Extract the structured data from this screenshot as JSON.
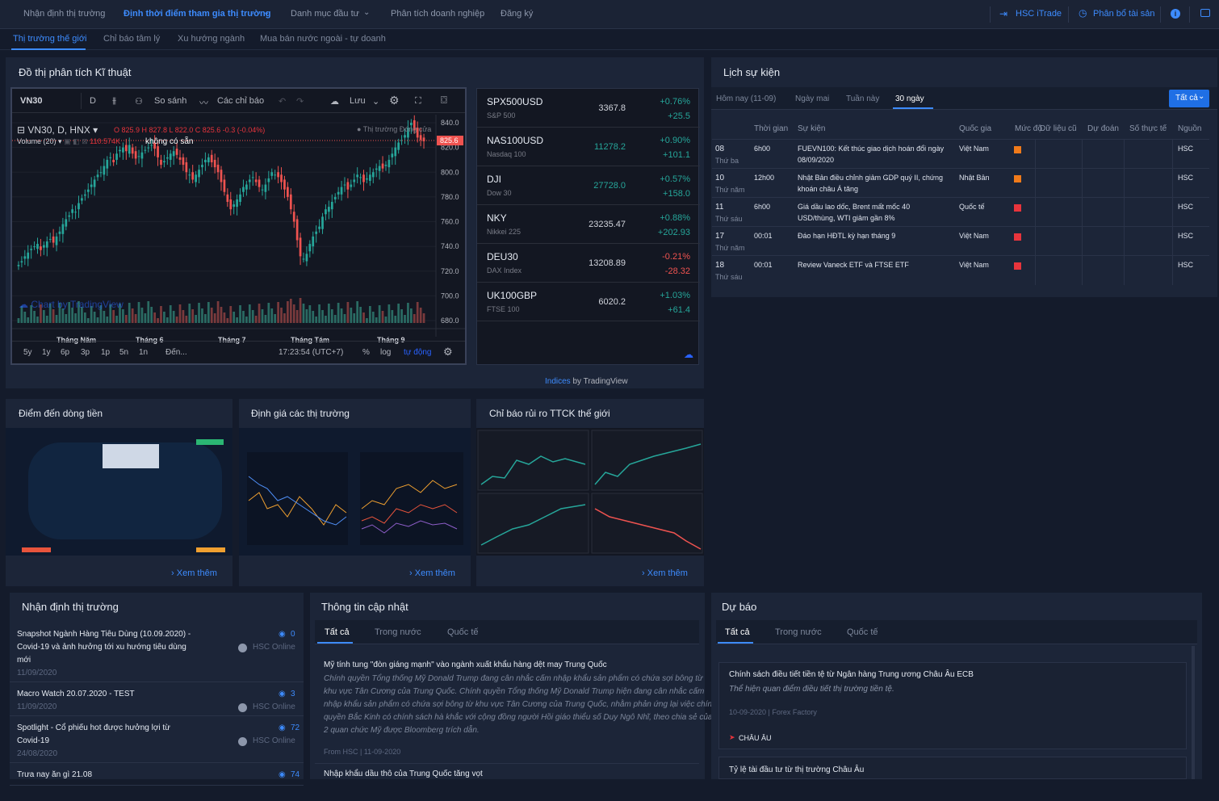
{
  "nav": {
    "items": [
      "Nhận định thị trường",
      "Định thời điểm tham gia thị trường",
      "Danh mục đầu tư",
      "Phân tích doanh nghiệp",
      "Đăng ký"
    ],
    "right": [
      "HSC iTrade",
      "Phân bổ tài sản"
    ]
  },
  "subnav": [
    "Thị trường thế giới",
    "Chỉ báo tâm lý",
    "Xu hướng ngành",
    "Mua bán nước ngoài - tự doanh"
  ],
  "tech": {
    "title": "Đồ thị phân tích Kĩ thuật",
    "symbol": "VN30",
    "interval": "D",
    "compare": "So sánh",
    "indicators": "Các chỉ báo",
    "save": "Lưu",
    "legend_symbol": "VN30, D, HNX",
    "ohlc": "O 825.9 H 827.8 L 822.0 C 825.6 -0.3 (-0.04%)",
    "volume_label": "Volume (20)",
    "volume_value": "110.574K",
    "volume_na": "không có sẵn",
    "market_status": "Thị trường Đóng cửa",
    "watermark": "Chart by TradingView",
    "ticks": [
      "840.0",
      "820.0",
      "800.0",
      "780.0",
      "760.0",
      "740.0",
      "720.0",
      "700.0",
      "680.0"
    ],
    "last_price": "825.6",
    "months": [
      "Tháng Năm",
      "Tháng 6",
      "Tháng 7",
      "Tháng Tám",
      "Tháng 9"
    ],
    "ranges": [
      "5y",
      "1y",
      "6p",
      "3p",
      "1p",
      "5n",
      "1n",
      "Đến..."
    ],
    "time": "17:23:54 (UTC+7)",
    "pct": "%",
    "log": "log",
    "auto": "tự động",
    "attribution_link": "Indices",
    "attribution_text": "by TradingView"
  },
  "indices": [
    {
      "sym": "SPX500USD",
      "name": "S&P 500",
      "price": "3367.8",
      "pct": "+0.76%",
      "chg": "+25.5",
      "up": true
    },
    {
      "sym": "NAS100USD",
      "name": "Nasdaq 100",
      "price": "11278.2",
      "pct": "+0.90%",
      "chg": "+101.1",
      "up": true
    },
    {
      "sym": "DJI",
      "name": "Dow 30",
      "price": "27728.0",
      "pct": "+0.57%",
      "chg": "+158.0",
      "up": true
    },
    {
      "sym": "NKY",
      "name": "Nikkei 225",
      "price": "23235.47",
      "pct": "+0.88%",
      "chg": "+202.93",
      "up": true
    },
    {
      "sym": "DEU30",
      "name": "DAX Index",
      "price": "13208.89",
      "pct": "-0.21%",
      "chg": "-28.32",
      "up": false
    },
    {
      "sym": "UK100GBP",
      "name": "FTSE 100",
      "price": "6020.2",
      "pct": "+1.03%",
      "chg": "+61.4",
      "up": true
    }
  ],
  "events": {
    "title": "Lịch sự kiện",
    "tabs": [
      "Hôm nay (11-09)",
      "Ngày mai",
      "Tuần này",
      "30 ngày"
    ],
    "filter": "Tất cả",
    "headers": [
      "Thời gian",
      "Sự kiện",
      "Quốc gia",
      "Mức độ",
      "Dữ liệu cũ",
      "Dự đoán",
      "Số thực tế",
      "Nguồn"
    ],
    "rows": [
      {
        "day": "08",
        "wd": "Thứ ba",
        "time": "6h00",
        "ev1": "FUEVN100: Kết thúc giao dịch hoán đổi ngày",
        "ev2": "08/09/2020",
        "country": "Việt Nam",
        "level": "#f07a1a",
        "src": "HSC"
      },
      {
        "day": "10",
        "wd": "Thứ năm",
        "time": "12h00",
        "ev1": "Nhật Bản điều chỉnh giảm GDP quý II, chứng",
        "ev2": "khoán châu Á tăng",
        "country": "Nhật Bản",
        "level": "#f07a1a",
        "src": "HSC"
      },
      {
        "day": "11",
        "wd": "Thứ sáu",
        "time": "6h00",
        "ev1": "Giá dầu lao dốc, Brent mất mốc 40",
        "ev2": "USD/thùng, WTI giảm gần 8%",
        "country": "Quốc tế",
        "level": "#e8343c",
        "src": "HSC"
      },
      {
        "day": "17",
        "wd": "Thứ năm",
        "time": "00:01",
        "ev1": "Đáo hạn HĐTL kỳ hạn tháng 9",
        "ev2": "",
        "country": "Việt Nam",
        "level": "#e8343c",
        "src": "HSC"
      },
      {
        "day": "18",
        "wd": "Thứ sáu",
        "time": "00:01",
        "ev1": "Review Vaneck ETF và FTSE ETF",
        "ev2": "",
        "country": "Việt Nam",
        "level": "#e8343c",
        "src": "HSC"
      }
    ]
  },
  "cards": [
    {
      "title": "Điểm đến dòng tiền",
      "more": "Xem thêm"
    },
    {
      "title": "Định giá các thị trường",
      "more": "Xem thêm"
    },
    {
      "title": "Chỉ báo rủi ro TTCK thế giới",
      "more": "Xem thêm"
    }
  ],
  "opinions": {
    "title": "Nhận định thị trường",
    "items": [
      {
        "l1": "Snapshot Ngành Hàng Tiêu Dùng (10.09.2020) -",
        "l2": "Covid-19 và ảnh hưởng tới xu hướng tiêu dùng",
        "l3": "mới",
        "date": "11/09/2020",
        "views": "0",
        "author": "HSC Online"
      },
      {
        "l1": "Macro Watch 20.07.2020 - TEST",
        "l2": "",
        "l3": "",
        "date": "11/09/2020",
        "views": "3",
        "author": "HSC Online"
      },
      {
        "l1": "Spotlight - Cổ phiếu hot được hưởng lợi từ",
        "l2": "Covid-19",
        "l3": "",
        "date": "24/08/2020",
        "views": "72",
        "author": "HSC Online"
      },
      {
        "l1": "Trưa nay ăn gì 21.08",
        "l2": "",
        "l3": "",
        "date": "",
        "views": "74",
        "author": ""
      }
    ]
  },
  "news": {
    "title": "Thông tin cập nhật",
    "tabs": [
      "Tất cả",
      "Trong nước",
      "Quốc tế"
    ],
    "headline": "Mỹ tính tung \"đòn giáng mạnh\" vào ngành xuất khẩu hàng dệt may Trung Quốc",
    "body": [
      "Chính quyền Tổng thống Mỹ Donald Trump đang cân nhắc cấm nhập khẩu sản phẩm có chứa sợi bông từ",
      "khu vực Tân Cương của Trung Quốc. Chính quyền Tổng thống Mỹ Donald Trump hiện đang cân nhắc cấm",
      "nhập khẩu sản phẩm có chứa sợi bông từ khu vực Tân Cương của Trung Quốc, nhằm phản ứng lại việc chính",
      "quyền Bắc Kinh có chính sách hà khắc với cộng đồng người Hồi giáo thiểu số Duy Ngô Nhĩ, theo chia sẻ của",
      "2 quan chức Mỹ được Bloomberg trích dẫn."
    ],
    "meta": "From HSC | 11-09-2020",
    "next": "Nhập khẩu dầu thô của Trung Quốc tăng vọt"
  },
  "forecast": {
    "title": "Dự báo",
    "tabs": [
      "Tất cả",
      "Trong nước",
      "Quốc tế"
    ],
    "headline": "Chính sách điều tiết tiền tệ từ Ngân hàng Trung ương Châu Âu ECB",
    "sub": "Thể hiện quan điểm điều tiết thị trường tiền tệ.",
    "meta": "10-09-2020 | Forex Factory",
    "region": "CHÂU ÂU",
    "next": "Tỷ lệ tài đầu tư từ thị trường Châu Âu"
  }
}
